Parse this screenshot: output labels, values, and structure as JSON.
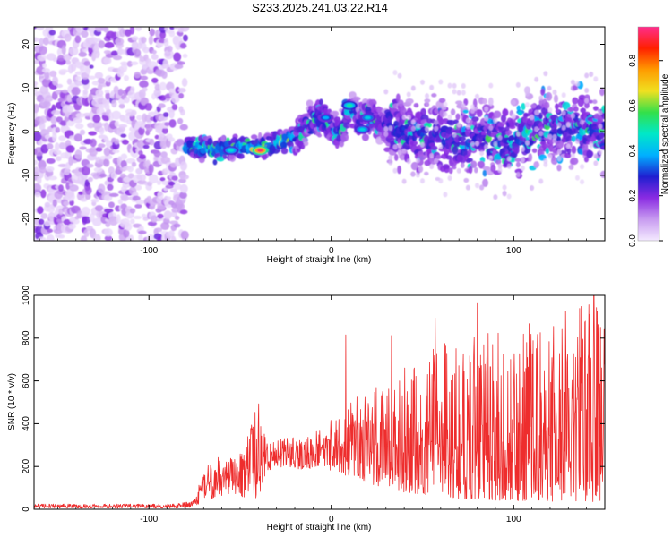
{
  "title": "S233.2025.241.03.22.R14",
  "chart_data": [
    {
      "type": "heatmap",
      "title": "S233.2025.241.03.22.R14",
      "xlabel": "Height of straight line (km)",
      "ylabel": "Frequency (Hz)",
      "xlim": [
        -163,
        150
      ],
      "ylim": [
        -25,
        24
      ],
      "xticks": [
        -100,
        0,
        100
      ],
      "yticks": [
        -20,
        -10,
        0,
        10,
        20
      ],
      "colorbar": {
        "label": "Normalized spectral amplitude",
        "range": [
          0,
          0.95
        ],
        "ticks": [
          0,
          0.2,
          0.4,
          0.6,
          0.8
        ],
        "colormap": [
          "#f4eaff",
          "#c89cf0",
          "#8a2be2",
          "#1f1fd0",
          "#00b0ff",
          "#00e8c8",
          "#33e04a",
          "#f0e020",
          "#ff9a00",
          "#ff2000",
          "#ff2d8c"
        ]
      },
      "noise_region_x": [
        -163,
        -80
      ],
      "ridge": {
        "x": [
          -83,
          -75,
          -65,
          -55,
          -45,
          -35,
          -25,
          -18,
          -12,
          -5,
          0,
          5,
          10,
          15,
          20,
          25,
          35,
          45,
          55,
          65,
          75,
          85,
          95,
          105,
          115,
          125,
          135,
          145
        ],
        "y": [
          -4,
          -3.5,
          -4,
          -3.5,
          -3.5,
          -3.5,
          -2,
          -1,
          2.5,
          3,
          0.5,
          0,
          6,
          2,
          4,
          2,
          1,
          -1,
          -1,
          -2,
          -2,
          -2,
          -3,
          -1.5,
          0.5,
          1,
          0.5,
          0.5
        ]
      },
      "peaks": [
        {
          "x": -39,
          "y": -4.3,
          "a": 0.93
        },
        {
          "x": -55,
          "y": -4.3,
          "a": 0.46
        },
        {
          "x": 10,
          "y": 6.0,
          "a": 0.5
        },
        {
          "x": 20,
          "y": 3.2,
          "a": 0.42
        },
        {
          "x": -3,
          "y": 3.2,
          "a": 0.38
        },
        {
          "x": 17,
          "y": 0.5,
          "a": 0.44
        }
      ]
    },
    {
      "type": "line",
      "xlabel": "Height of straight line (km)",
      "ylabel": "SNR (10 * v/v)",
      "xlim": [
        -163,
        150
      ],
      "ylim": [
        0,
        1000
      ],
      "xticks": [
        -100,
        0,
        100
      ],
      "yticks": [
        0,
        200,
        400,
        600,
        800,
        1000
      ],
      "series": [
        {
          "name": "SNR",
          "color": "#ee2d2d",
          "envelope_x": [
            -163,
            -85,
            -75,
            -70,
            -60,
            -50,
            -40,
            -35,
            -25,
            -15,
            -5,
            0,
            10,
            20,
            30,
            40,
            50,
            60,
            70,
            80,
            90,
            100,
            110,
            120,
            130,
            140,
            150
          ],
          "envelope_low": [
            5,
            5,
            10,
            40,
            60,
            60,
            40,
            180,
            200,
            180,
            200,
            180,
            150,
            120,
            100,
            80,
            70,
            60,
            50,
            50,
            40,
            40,
            40,
            30,
            30,
            30,
            30
          ],
          "envelope_high": [
            25,
            25,
            45,
            200,
            260,
            260,
            520,
            300,
            340,
            330,
            380,
            420,
            500,
            560,
            620,
            680,
            720,
            780,
            800,
            820,
            840,
            860,
            880,
            900,
            940,
            980,
            1000
          ],
          "peaks": [
            {
              "x": 8,
              "y": 815
            },
            {
              "x": 33,
              "y": 812
            },
            {
              "x": 57,
              "y": 895
            },
            {
              "x": 80,
              "y": 966
            },
            {
              "x": 137,
              "y": 948
            },
            {
              "x": 144,
              "y": 1000
            }
          ]
        }
      ]
    }
  ]
}
